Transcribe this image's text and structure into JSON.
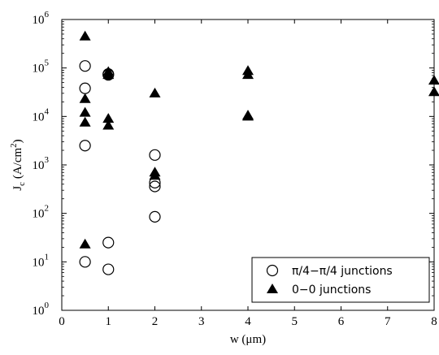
{
  "chart_data": {
    "type": "scatter",
    "xlabel": "w (μm)",
    "ylabel_base": "J",
    "ylabel_sub": "c",
    "ylabel_unit": " (A/cm",
    "ylabel_sup": "2",
    "ylabel_close": ")",
    "xlim": [
      0,
      8
    ],
    "ylim": [
      1,
      1000000
    ],
    "yscale": "log",
    "x_ticks": [
      "0",
      "1",
      "2",
      "3",
      "4",
      "5",
      "6",
      "7",
      "8"
    ],
    "y_ticks": [
      {
        "base": "10",
        "exp": "0"
      },
      {
        "base": "10",
        "exp": "1"
      },
      {
        "base": "10",
        "exp": "2"
      },
      {
        "base": "10",
        "exp": "3"
      },
      {
        "base": "10",
        "exp": "4"
      },
      {
        "base": "10",
        "exp": "5"
      },
      {
        "base": "10",
        "exp": "6"
      }
    ],
    "legend_position": "bottom-right",
    "series": [
      {
        "name": "π/4−π/4 junctions",
        "marker": "open-circle",
        "points": [
          [
            0.5,
            110000
          ],
          [
            0.5,
            38000
          ],
          [
            0.5,
            2500
          ],
          [
            0.5,
            10
          ],
          [
            1,
            75000
          ],
          [
            1,
            72000
          ],
          [
            1,
            25
          ],
          [
            1,
            7
          ],
          [
            2,
            1600
          ],
          [
            2,
            430
          ],
          [
            2,
            360
          ],
          [
            2,
            85
          ]
        ]
      },
      {
        "name": "0−0 junctions",
        "marker": "filled-triangle",
        "points": [
          [
            0.5,
            450000
          ],
          [
            0.5,
            23000
          ],
          [
            0.5,
            12000
          ],
          [
            0.5,
            7500
          ],
          [
            0.5,
            23
          ],
          [
            1,
            83000
          ],
          [
            1,
            72000
          ],
          [
            1,
            9000
          ],
          [
            1,
            6500
          ],
          [
            2,
            30000
          ],
          [
            2,
            700
          ],
          [
            2,
            600
          ],
          [
            4,
            87000
          ],
          [
            4,
            72000
          ],
          [
            4,
            10500
          ],
          [
            4,
            10000
          ],
          [
            8,
            55000
          ],
          [
            8,
            32000
          ]
        ]
      }
    ]
  }
}
